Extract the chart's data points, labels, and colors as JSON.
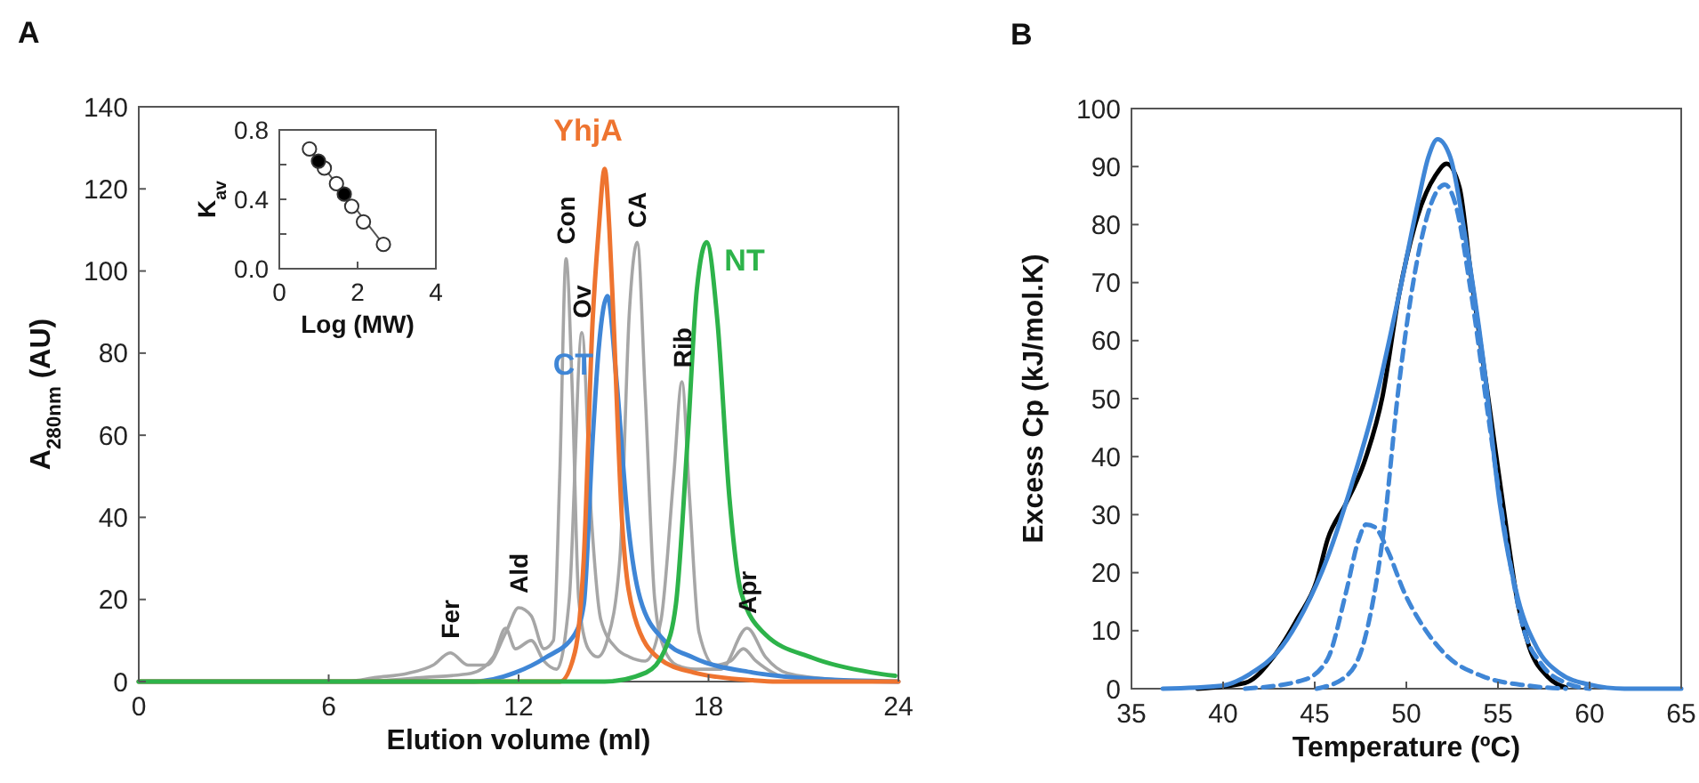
{
  "chart_data": [
    {
      "type": "line",
      "title": "A",
      "xlabel": "Elution volume (ml)",
      "ylabel": "A$_{280nm}$ (AU)",
      "xlim": [
        0,
        24
      ],
      "ylim": [
        0,
        140
      ],
      "xticks": [
        0,
        6,
        12,
        18,
        24
      ],
      "yticks": [
        0,
        20,
        40,
        60,
        80,
        100,
        120,
        140
      ],
      "series": [
        {
          "color": "#a6a6a6",
          "x": [
            0,
            6.5,
            7.5,
            8.5,
            9.3,
            9.84,
            10.4,
            11,
            11.6,
            12,
            12.4,
            12.8,
            13.1,
            13.3,
            13.5,
            13.7,
            13.9,
            14.2,
            14.5,
            14.8,
            15.2,
            15.5,
            15.75,
            16,
            16.3,
            16.6,
            17,
            17.6,
            18.4,
            19.22,
            19.8,
            20.5,
            22,
            24
          ],
          "values": [
            0,
            0,
            1,
            2,
            4,
            7,
            4,
            4,
            12,
            18,
            16,
            8,
            10,
            50,
            103,
            70,
            20,
            8,
            6,
            10,
            30,
            90,
            107,
            70,
            20,
            8,
            4,
            3,
            3,
            13,
            6,
            2,
            0.5,
            0
          ]
        },
        {
          "color": "#a6a6a6",
          "x": [
            0,
            7,
            9,
            10.5,
            11.2,
            11.59,
            11.9,
            12.4,
            12.8,
            13.2,
            13.6,
            14.0,
            14.3,
            14.6,
            15.1,
            15.5,
            16,
            16.5,
            16.9,
            17.16,
            17.4,
            17.7,
            18.2,
            18.7,
            19.1,
            19.5,
            20.5,
            24
          ],
          "values": [
            0,
            0,
            1,
            2,
            6,
            13,
            8,
            10,
            5,
            3,
            20,
            85,
            40,
            15,
            8,
            6,
            5,
            15,
            50,
            73,
            45,
            12,
            4,
            5,
            8,
            5,
            1,
            0
          ]
        },
        {
          "name": "CT",
          "color": "#3f86d6",
          "x": [
            0,
            10.6,
            11.9,
            12.84,
            13.78,
            14.06,
            14.34,
            14.53,
            14.81,
            15.09,
            15.47,
            15.84,
            16.59,
            17.53,
            19.4,
            21.3,
            24
          ],
          "values": [
            0,
            0,
            2.2,
            5.8,
            11.6,
            18.8,
            59,
            81,
            93.9,
            73.7,
            37.6,
            20.2,
            10.1,
            5.8,
            2.2,
            0.7,
            0
          ]
        },
        {
          "name": "YhjA",
          "color": "#ee7430",
          "x": [
            0,
            13.31,
            13.78,
            14.06,
            14.34,
            14.53,
            14.72,
            14.87,
            15.0,
            15.28,
            15.66,
            16.41,
            17.53,
            19.4,
            20.16,
            24
          ],
          "values": [
            0,
            0,
            7.2,
            30,
            88,
            110,
            124.9,
            110,
            88,
            37.6,
            15.9,
            5.8,
            2.2,
            0.3,
            0,
            0
          ]
        },
        {
          "name": "NT",
          "color": "#2db34a",
          "x": [
            0,
            14.72,
            16.03,
            16.59,
            16.97,
            17.34,
            17.63,
            17.94,
            18.28,
            18.66,
            19.03,
            19.78,
            21.28,
            23.16,
            23.9
          ],
          "values": [
            0,
            0,
            2.2,
            7.2,
            18.8,
            59,
            95.4,
            107,
            88,
            44.8,
            21.7,
            11.6,
            5.8,
            2.2,
            1.4
          ]
        }
      ],
      "annotations": [
        {
          "text": "Fer",
          "x": 9.84,
          "y": 7
        },
        {
          "text": "Ald",
          "x": 12,
          "y": 18
        },
        {
          "text": "Con",
          "x": 13.5,
          "y": 103
        },
        {
          "text": "Ov",
          "x": 14.0,
          "y": 85
        },
        {
          "text": "CA",
          "x": 15.75,
          "y": 107
        },
        {
          "text": "Rib",
          "x": 17.16,
          "y": 73
        },
        {
          "text": "Apr",
          "x": 19.22,
          "y": 13
        }
      ]
    },
    {
      "type": "scatter",
      "xlabel": "Log (MW)",
      "ylabel": "K$_{av}$",
      "xlim": [
        0,
        4
      ],
      "ylim": [
        0,
        0.8
      ],
      "xticks": [
        0,
        2,
        4
      ],
      "yticks": [
        {
          "value": 0,
          "label": "0.0"
        },
        {
          "value": 0.2,
          "label": null
        },
        {
          "value": 0.4,
          "label": "0.4"
        },
        {
          "value": 0.6,
          "label": null
        },
        {
          "value": 0.8,
          "label": "0.8"
        }
      ],
      "series": [
        {
          "type": "line",
          "color": "#555555",
          "x": [
            0.77,
            2.66
          ],
          "values": [
            0.69,
            0.14
          ]
        },
        {
          "color": "#ffffff",
          "marker": "circle",
          "x": [
            0.77,
            1.15,
            1.46,
            1.85,
            2.15,
            2.66
          ],
          "values": [
            0.69,
            0.58,
            0.49,
            0.36,
            0.27,
            0.14
          ]
        },
        {
          "color": "#000000",
          "marker": "circle",
          "x": [
            1.0,
            1.66
          ],
          "values": [
            0.62,
            0.43
          ]
        }
      ]
    },
    {
      "type": "line",
      "title": "B",
      "xlabel": "Temperature (ºC)",
      "ylabel": "Excess Cp  (kJ/mol.K)",
      "xlim": [
        35,
        65
      ],
      "ylim": [
        0,
        100
      ],
      "xticks": [
        35,
        40,
        45,
        50,
        55,
        60,
        65
      ],
      "yticks": [
        0,
        10,
        20,
        30,
        40,
        50,
        60,
        70,
        80,
        90,
        100
      ],
      "series": [
        {
          "color": "#000000",
          "line_style": "solid",
          "x": [
            38.6,
            41.2,
            42.8,
            44.1,
            45.1,
            45.7,
            46.7,
            47.7,
            48.7,
            49.6,
            50.6,
            51.6,
            52.2,
            52.9,
            53.5,
            54.5,
            55.5,
            56.1,
            56.7,
            57.7,
            58.7
          ],
          "values": [
            0,
            1,
            5.7,
            12.3,
            18.5,
            25.7,
            31.9,
            39,
            50.4,
            67.9,
            81.3,
            88.5,
            90.5,
            86.4,
            72,
            49.4,
            26.7,
            14.4,
            7.2,
            2.1,
            0.2
          ]
        },
        {
          "color": "#3f86d6",
          "line_style": "dashed",
          "x": [
            41.2,
            44.4,
            45.7,
            46.7,
            47.4,
            47.8,
            48.3,
            49.0,
            49.9,
            50.9,
            52.2,
            54.2,
            56.7,
            58.7
          ],
          "values": [
            0,
            1.5,
            5.1,
            16.5,
            25.7,
            28.3,
            27.8,
            23.7,
            16.5,
            10.8,
            5.7,
            2.1,
            0.5,
            0
          ]
        },
        {
          "color": "#3f86d6",
          "line_style": "dashed",
          "x": [
            45.1,
            46.7,
            47.7,
            48.7,
            49.6,
            50.6,
            51.6,
            52.1,
            52.7,
            53.5,
            54.5,
            55.5,
            56.4,
            57.4,
            58.7,
            60
          ],
          "values": [
            0,
            2.1,
            8.2,
            25.7,
            52.5,
            74,
            85.4,
            86.9,
            83.3,
            68.9,
            46.3,
            24.7,
            10.3,
            4.1,
            1,
            0
          ]
        },
        {
          "color": "#3f86d6",
          "line_style": "solid",
          "x": [
            36.7,
            39.9,
            41.5,
            43.2,
            44.4,
            45.7,
            47.0,
            48.3,
            49.6,
            50.6,
            51.2,
            51.7,
            52.4,
            53.2,
            54.2,
            55.1,
            56.1,
            57.1,
            58.4,
            60,
            61.9,
            65
          ],
          "values": [
            0,
            0.5,
            2.6,
            7.2,
            13.4,
            22.6,
            35,
            49.4,
            67.9,
            83.3,
            91.6,
            94.7,
            91.6,
            78.2,
            56.6,
            31.9,
            15.4,
            7.2,
            2.6,
            0.7,
            0,
            0
          ]
        }
      ]
    }
  ]
}
